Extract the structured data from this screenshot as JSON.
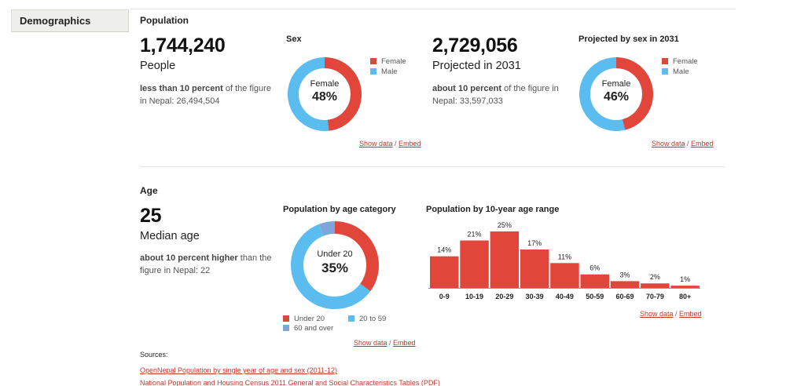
{
  "sidebar": {
    "tab_label": "Demographics"
  },
  "population": {
    "section_title": "Population",
    "count": "1,744,240",
    "count_label": "People",
    "compare_bold": "less than 10 percent",
    "compare_rest": " of the figure in Nepal: 26,494,504",
    "sex_chart": {
      "title": "Sex",
      "center_label": "Female",
      "center_value": "48%",
      "female_fraction": 0.48,
      "legend": [
        "Female",
        "Male"
      ]
    },
    "projected_count": "2,729,056",
    "projected_label": "Projected in 2031",
    "projected_compare_bold": "about 10 percent",
    "projected_compare_rest": " of the figure in Nepal: 33,597,033",
    "projected_chart": {
      "title": "Projected by sex in 2031",
      "center_label": "Female",
      "center_value": "46%",
      "female_fraction": 0.46,
      "legend": [
        "Female",
        "Male"
      ]
    }
  },
  "age": {
    "section_title": "Age",
    "median": "25",
    "median_label": "Median age",
    "compare_bold": "about 10 percent higher",
    "compare_rest": " than the figure in Nepal: 22",
    "category_chart": {
      "title": "Population by age category",
      "center_label": "Under 20",
      "center_value": "35%",
      "segments": [
        {
          "name": "Under 20",
          "fraction": 0.35
        },
        {
          "name": "20 to 59",
          "fraction": 0.59
        },
        {
          "name": "60 and over",
          "fraction": 0.06
        }
      ]
    },
    "range_chart_title": "Population by 10-year age range"
  },
  "chart_data": {
    "type": "bar",
    "title": "Population by 10-year age range",
    "categories": [
      "0-9",
      "10-19",
      "20-29",
      "30-39",
      "40-49",
      "50-59",
      "60-69",
      "70-79",
      "80+"
    ],
    "values": [
      14,
      21,
      25,
      17,
      11,
      6,
      3,
      2,
      1
    ],
    "value_labels": [
      "14%",
      "21%",
      "25%",
      "17%",
      "11%",
      "6%",
      "3%",
      "2%",
      "1%"
    ],
    "ylim": [
      0,
      25
    ],
    "grid": false
  },
  "links": {
    "show_data": "Show data",
    "separator": " / ",
    "embed": "Embed"
  },
  "sources": {
    "label": "Sources:",
    "items": [
      "OpenNepal Population by single year of age and sex (2011-12)",
      "National Population and Housing Census 2011 General and Social Characteristics Tables (PDF)"
    ]
  },
  "colors": {
    "red": "#e2453a",
    "blue": "#5bbcef",
    "slate": "#7ea6d8"
  }
}
